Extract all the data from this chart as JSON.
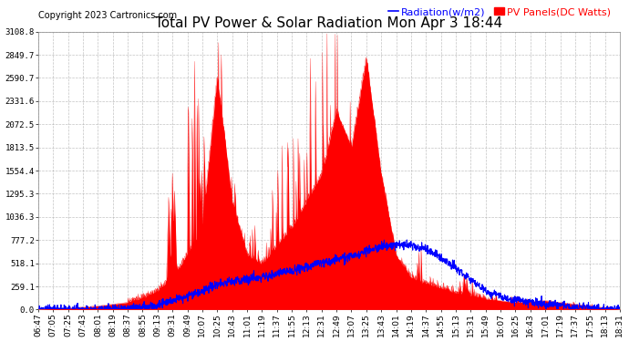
{
  "title": "Total PV Power & Solar Radiation Mon Apr 3 18:44",
  "copyright": "Copyright 2023 Cartronics.com",
  "legend_radiation": "Radiation(w/m2)",
  "legend_pv": "PV Panels(DC Watts)",
  "yticks": [
    0.0,
    259.1,
    518.1,
    777.2,
    1036.3,
    1295.3,
    1554.4,
    1813.5,
    2072.5,
    2331.6,
    2590.7,
    2849.7,
    3108.8
  ],
  "ymax": 3108.8,
  "background_color": "#ffffff",
  "grid_color": "#aaaaaa",
  "pv_color": "#ff0000",
  "radiation_color": "#0000ff",
  "title_fontsize": 11,
  "copyright_fontsize": 7,
  "legend_fontsize": 8,
  "tick_fontsize": 6.5
}
